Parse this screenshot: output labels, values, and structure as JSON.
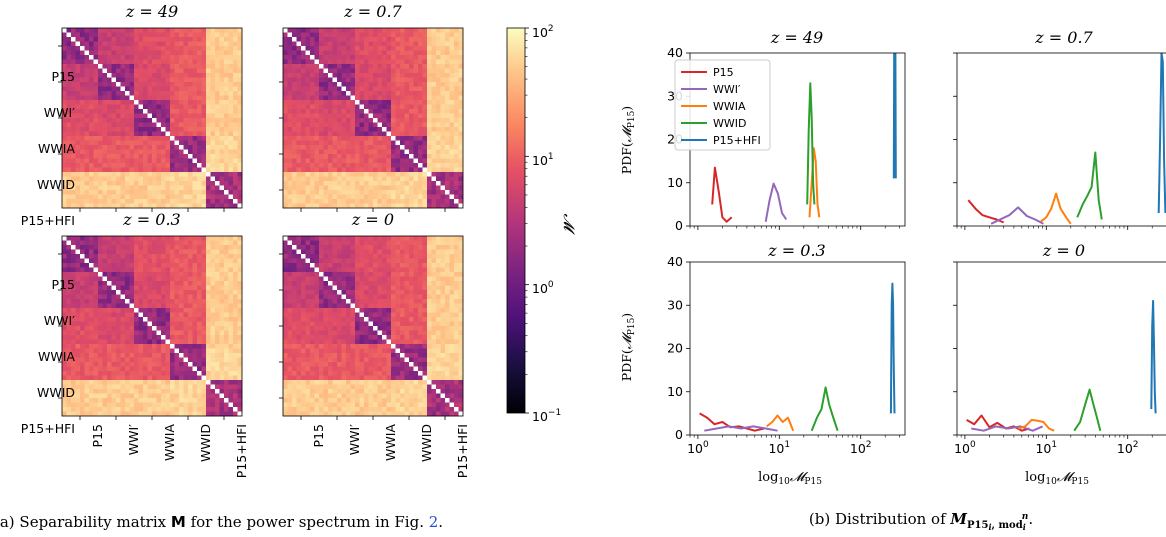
{
  "chart_data": [
    {
      "type": "heatmap",
      "caption": "(a) Separability matrix M for the power spectrum in Fig. 2.",
      "caption_parts": {
        "prefix": "(a) Separability matrix ",
        "symbol": "M",
        "suffix": " for the power spectrum in Fig. ",
        "ref": "2",
        "end": "."
      },
      "group_labels": [
        "P15",
        "WWI′",
        "WWIA",
        "WWID",
        "P15+HFI"
      ],
      "panels": [
        {
          "title": "z = 49"
        },
        {
          "title": "z = 0.7"
        },
        {
          "title": "z = 0.3"
        },
        {
          "title": "z = 0"
        }
      ],
      "block_values_log10": [
        [
          0.25,
          0.65,
          0.85,
          0.95,
          1.7
        ],
        [
          0.65,
          0.25,
          0.8,
          0.95,
          1.7
        ],
        [
          0.85,
          0.8,
          0.25,
          0.95,
          1.7
        ],
        [
          0.95,
          0.95,
          0.95,
          0.3,
          1.75
        ],
        [
          1.7,
          1.7,
          1.7,
          1.75,
          0.4
        ]
      ],
      "colorbar": {
        "label": "𝓜",
        "scale": "log",
        "range": [
          0.1,
          100
        ],
        "ticks": [
          "10−1",
          "100",
          "101",
          "102"
        ],
        "tick_base": "10",
        "tick_exps": [
          "−1",
          "0",
          "1",
          "2"
        ]
      }
    },
    {
      "type": "line",
      "caption": "(b) Distribution of M P15i, modin.",
      "caption_parts": {
        "prefix": "(b) Distribution of ",
        "symbol": "M",
        "sub": "P15",
        "subsub": "i",
        "sub2": ", mod",
        "subsub2": "i",
        "sup": "n",
        "end": "."
      },
      "xlabel": "log10𝓜P15",
      "xlabel_parts": {
        "a": "log",
        "b": "10",
        "c": "𝓜",
        "d": "P15"
      },
      "ylabel": "PDF(𝓜P15)",
      "ylabel_parts": {
        "a": "PDF(",
        "b": "𝓜",
        "c": "P15",
        "d": ")"
      },
      "x_scale": "log",
      "xlim": [
        0.8,
        350
      ],
      "ylim": [
        0,
        40
      ],
      "yticks": [
        0,
        10,
        20,
        30,
        40
      ],
      "xticks": [
        "100",
        "101",
        "102"
      ],
      "xtick_base": "10",
      "xtick_exps": [
        "0",
        "1",
        "2"
      ],
      "legend_position": "top-left",
      "colors": {
        "P15": "#d62728",
        "WWI′": "#9467bd",
        "WWIA": "#ff7f0e",
        "WWID": "#2ca02c",
        "P15+HFI": "#1f77b4"
      },
      "panels": [
        {
          "title": "z = 49",
          "series": [
            {
              "name": "P15",
              "x": [
                1.5,
                1.62,
                1.8,
                2.0,
                2.25,
                2.6
              ],
              "y": [
                5,
                13.5,
                8,
                2,
                1,
                2
              ]
            },
            {
              "name": "WWI′",
              "x": [
                6.8,
                7.6,
                8.5,
                9.6,
                10.8,
                12.2
              ],
              "y": [
                1,
                6,
                9.8,
                7.5,
                3,
                1.5
              ]
            },
            {
              "name": "WWIA",
              "x": [
                23.5,
                25.0,
                26.5,
                28.0,
                29.5,
                31.0
              ],
              "y": [
                2,
                10,
                18,
                15,
                5,
                2
              ]
            },
            {
              "name": "WWID",
              "x": [
                22.0,
                23.0,
                24.0,
                25.0,
                26.0,
                27.0
              ],
              "y": [
                5,
                22,
                33,
                25,
                10,
                5
              ]
            },
            {
              "name": "P15+HFI",
              "x": [
                255,
                258,
                261,
                264,
                267,
                270
              ],
              "y": [
                11,
                40,
                40,
                40,
                40,
                11
              ]
            }
          ]
        },
        {
          "title": "z = 0.7",
          "series": [
            {
              "name": "P15",
              "x": [
                1.1,
                1.35,
                1.65,
                2.0,
                2.45,
                3.0
              ],
              "y": [
                6,
                4,
                2.5,
                2,
                1.5,
                0.8
              ]
            },
            {
              "name": "WWI′",
              "x": [
                2.1,
                2.7,
                3.5,
                4.5,
                5.8,
                7.3,
                9.2
              ],
              "y": [
                0.5,
                1.5,
                2.5,
                4.3,
                2.3,
                1.5,
                0.5
              ]
            },
            {
              "name": "WWIA",
              "x": [
                8.5,
                10.0,
                11.5,
                13.2,
                15.0,
                17.5,
                20.0
              ],
              "y": [
                1,
                2,
                4,
                7.5,
                4,
                2,
                0.5
              ]
            },
            {
              "name": "WWID",
              "x": [
                24,
                28,
                32,
                36,
                40,
                44,
                48
              ],
              "y": [
                2,
                5,
                7,
                9,
                17,
                6,
                1.5
              ]
            },
            {
              "name": "P15+HFI",
              "x": [
                240,
                250,
                260,
                270,
                280,
                290
              ],
              "y": [
                3,
                20,
                40,
                38,
                15,
                3
              ]
            }
          ]
        },
        {
          "title": "z = 0.3",
          "series": [
            {
              "name": "P15",
              "x": [
                1.05,
                1.3,
                1.6,
                2.0,
                2.5,
                3.2,
                4.0,
                5.0,
                6.5
              ],
              "y": [
                5,
                4,
                2.5,
                3,
                1.8,
                2,
                1.5,
                1,
                1.5
              ]
            },
            {
              "name": "WWI′",
              "x": [
                1.2,
                1.7,
                2.4,
                3.4,
                4.8,
                6.8,
                9.5
              ],
              "y": [
                1,
                1.5,
                2,
                1.5,
                2,
                1.5,
                1
              ]
            },
            {
              "name": "WWIA",
              "x": [
                7.0,
                8.2,
                9.5,
                11.0,
                12.8,
                14.8
              ],
              "y": [
                2,
                3,
                4.5,
                3,
                4,
                1
              ]
            },
            {
              "name": "WWID",
              "x": [
                25,
                29,
                33,
                37,
                41,
                46,
                52
              ],
              "y": [
                1,
                4,
                6,
                11,
                7,
                4,
                1
              ]
            },
            {
              "name": "P15+HFI",
              "x": [
                235,
                240,
                245,
                250,
                255,
                260
              ],
              "y": [
                5,
                30,
                35,
                30,
                15,
                5
              ]
            }
          ]
        },
        {
          "title": "z = 0",
          "series": [
            {
              "name": "P15",
              "x": [
                1.05,
                1.3,
                1.6,
                2.0,
                2.5,
                3.2,
                4.0,
                5.0,
                6.2
              ],
              "y": [
                3.5,
                2.5,
                4.5,
                1.8,
                2.8,
                1.5,
                2,
                1,
                1.5
              ]
            },
            {
              "name": "WWI′",
              "x": [
                1.2,
                1.7,
                2.4,
                3.4,
                4.8,
                6.8,
                9.0
              ],
              "y": [
                1.5,
                1,
                2,
                1.5,
                2,
                1,
                2
              ]
            },
            {
              "name": "WWIA",
              "x": [
                4.5,
                5.5,
                6.6,
                7.8,
                9.2,
                10.8,
                12.5
              ],
              "y": [
                1.5,
                2,
                3.5,
                3.3,
                3,
                1.5,
                1
              ]
            },
            {
              "name": "WWID",
              "x": [
                22,
                26,
                30,
                34,
                38,
                42,
                46
              ],
              "y": [
                1,
                3,
                7,
                10.5,
                7,
                4,
                1
              ]
            },
            {
              "name": "P15+HFI",
              "x": [
                195,
                200,
                205,
                210,
                215,
                220
              ],
              "y": [
                6,
                25,
                31,
                22,
                10,
                5
              ]
            }
          ]
        }
      ]
    }
  ]
}
